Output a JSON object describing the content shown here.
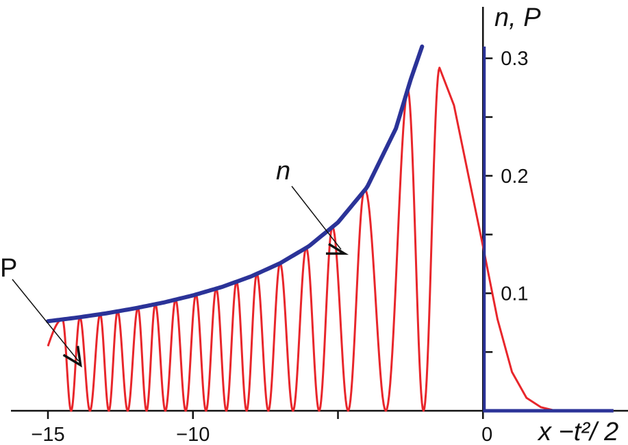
{
  "chart_data": {
    "type": "line",
    "title": "",
    "xlabel": "x −t²/ 2",
    "ylabel": "n, P",
    "xlim": [
      -15,
      5
    ],
    "ylim": [
      0,
      0.31
    ],
    "x_ticks": [
      -15,
      -10,
      0
    ],
    "x_tick_labels": [
      "−15",
      "−10",
      "0"
    ],
    "x_minor_ticks": [
      -5
    ],
    "y_ticks": [
      0.1,
      0.2,
      0.3
    ],
    "y_tick_labels": [
      "0.1",
      "0.2",
      "0.3"
    ],
    "y_minor_ticks": [
      0.05,
      0.15,
      0.25
    ],
    "grid": false,
    "legend": "none",
    "series": [
      {
        "name": "n",
        "color": "#2b3398",
        "points": [
          [
            -15.0,
            0.0762
          ],
          [
            -14.0,
            0.0793
          ],
          [
            -13.0,
            0.0829
          ],
          [
            -12.0,
            0.0872
          ],
          [
            -11.0,
            0.0922
          ],
          [
            -10.0,
            0.0982
          ],
          [
            -9.0,
            0.1054
          ],
          [
            -8.0,
            0.1143
          ],
          [
            -7.0,
            0.1255
          ],
          [
            -6.0,
            0.1401
          ],
          [
            -5.0,
            0.1603
          ],
          [
            -4.0,
            0.1901
          ],
          [
            -3.0,
            0.2404
          ],
          [
            -2.5,
            0.2814
          ],
          [
            -2.1,
            0.31
          ]
        ],
        "tail": [
          [
            0.0,
            0.0
          ],
          [
            4.5,
            0.0
          ]
        ]
      },
      {
        "name": "P",
        "color": "#e8262b",
        "envelope_ref": "n",
        "peak": [
          -1.5,
          0.292
        ],
        "maxima_x": [
          -14.5,
          -13.9,
          -13.2,
          -12.6,
          -11.9,
          -11.3,
          -10.6,
          -9.9,
          -9.2,
          -8.5,
          -7.8,
          -7.0,
          -6.1,
          -5.2,
          -4.1,
          -2.6,
          -1.5
        ],
        "tail": [
          [
            -1.5,
            0.292
          ],
          [
            -1.0,
            0.26
          ],
          [
            -0.5,
            0.2
          ],
          [
            0.0,
            0.14
          ],
          [
            0.5,
            0.078
          ],
          [
            1.0,
            0.033
          ],
          [
            1.5,
            0.011
          ],
          [
            2.0,
            0.003
          ],
          [
            2.5,
            0.0
          ],
          [
            4.5,
            0.0
          ]
        ]
      }
    ],
    "annotations": [
      {
        "text": "n",
        "italic": true,
        "points_to": [
          -4.8,
          0.135
        ]
      },
      {
        "text": "P",
        "italic": false,
        "points_to": [
          -13.9,
          0.04
        ]
      }
    ]
  }
}
